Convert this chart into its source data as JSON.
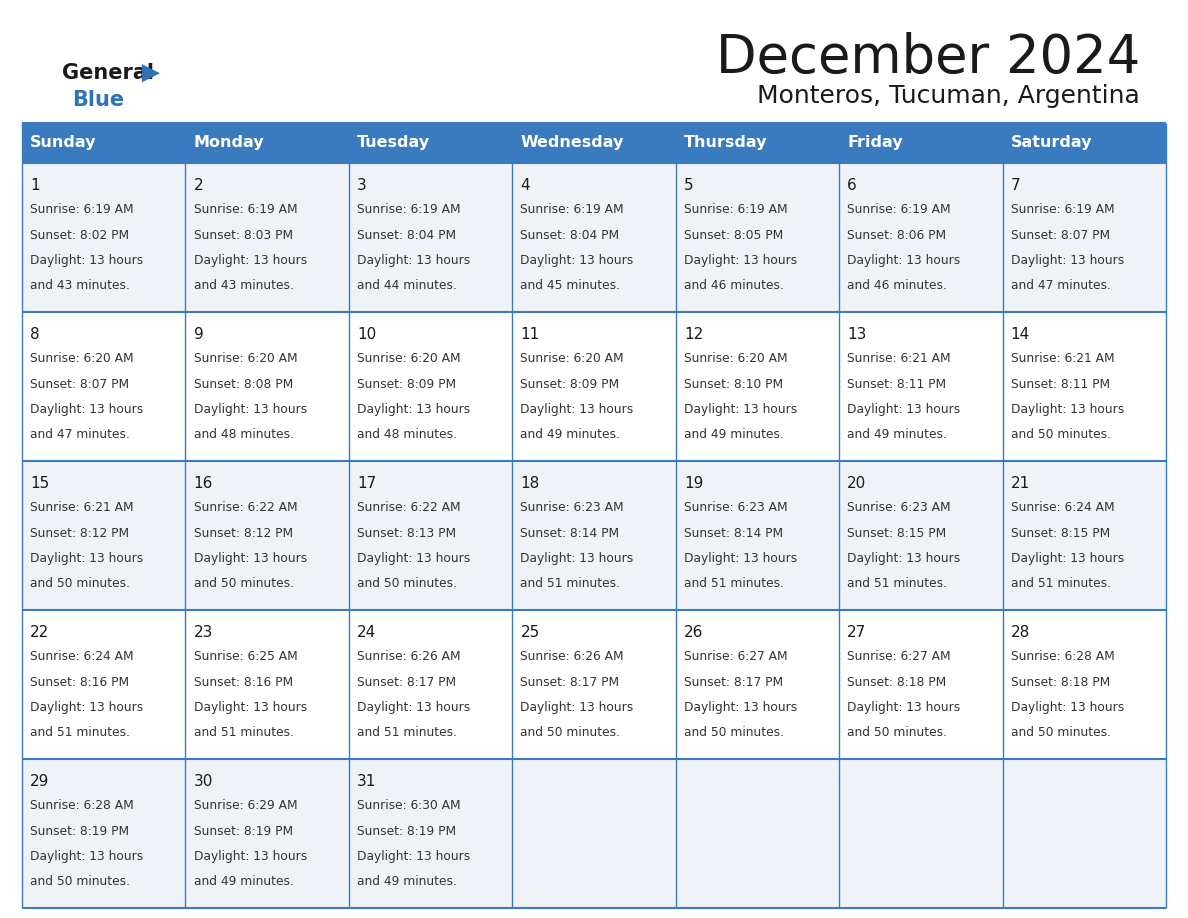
{
  "title": "December 2024",
  "subtitle": "Monteros, Tucuman, Argentina",
  "header_color": "#3a7abf",
  "header_text_color": "#ffffff",
  "weekdays": [
    "Sunday",
    "Monday",
    "Tuesday",
    "Wednesday",
    "Thursday",
    "Friday",
    "Saturday"
  ],
  "cell_bg_even": "#eff3f8",
  "cell_bg_odd": "#ffffff",
  "border_color": "#3a7abf",
  "day_text_color": "#1a1a1a",
  "info_text_color": "#333333",
  "logo_general_color": "#1a1a1a",
  "logo_blue_color": "#2e75b6",
  "days": [
    {
      "day": 1,
      "col": 0,
      "row": 0,
      "sunrise": "6:19 AM",
      "sunset": "8:02 PM",
      "daylight": "13 hours and 43 minutes."
    },
    {
      "day": 2,
      "col": 1,
      "row": 0,
      "sunrise": "6:19 AM",
      "sunset": "8:03 PM",
      "daylight": "13 hours and 43 minutes."
    },
    {
      "day": 3,
      "col": 2,
      "row": 0,
      "sunrise": "6:19 AM",
      "sunset": "8:04 PM",
      "daylight": "13 hours and 44 minutes."
    },
    {
      "day": 4,
      "col": 3,
      "row": 0,
      "sunrise": "6:19 AM",
      "sunset": "8:04 PM",
      "daylight": "13 hours and 45 minutes."
    },
    {
      "day": 5,
      "col": 4,
      "row": 0,
      "sunrise": "6:19 AM",
      "sunset": "8:05 PM",
      "daylight": "13 hours and 46 minutes."
    },
    {
      "day": 6,
      "col": 5,
      "row": 0,
      "sunrise": "6:19 AM",
      "sunset": "8:06 PM",
      "daylight": "13 hours and 46 minutes."
    },
    {
      "day": 7,
      "col": 6,
      "row": 0,
      "sunrise": "6:19 AM",
      "sunset": "8:07 PM",
      "daylight": "13 hours and 47 minutes."
    },
    {
      "day": 8,
      "col": 0,
      "row": 1,
      "sunrise": "6:20 AM",
      "sunset": "8:07 PM",
      "daylight": "13 hours and 47 minutes."
    },
    {
      "day": 9,
      "col": 1,
      "row": 1,
      "sunrise": "6:20 AM",
      "sunset": "8:08 PM",
      "daylight": "13 hours and 48 minutes."
    },
    {
      "day": 10,
      "col": 2,
      "row": 1,
      "sunrise": "6:20 AM",
      "sunset": "8:09 PM",
      "daylight": "13 hours and 48 minutes."
    },
    {
      "day": 11,
      "col": 3,
      "row": 1,
      "sunrise": "6:20 AM",
      "sunset": "8:09 PM",
      "daylight": "13 hours and 49 minutes."
    },
    {
      "day": 12,
      "col": 4,
      "row": 1,
      "sunrise": "6:20 AM",
      "sunset": "8:10 PM",
      "daylight": "13 hours and 49 minutes."
    },
    {
      "day": 13,
      "col": 5,
      "row": 1,
      "sunrise": "6:21 AM",
      "sunset": "8:11 PM",
      "daylight": "13 hours and 49 minutes."
    },
    {
      "day": 14,
      "col": 6,
      "row": 1,
      "sunrise": "6:21 AM",
      "sunset": "8:11 PM",
      "daylight": "13 hours and 50 minutes."
    },
    {
      "day": 15,
      "col": 0,
      "row": 2,
      "sunrise": "6:21 AM",
      "sunset": "8:12 PM",
      "daylight": "13 hours and 50 minutes."
    },
    {
      "day": 16,
      "col": 1,
      "row": 2,
      "sunrise": "6:22 AM",
      "sunset": "8:12 PM",
      "daylight": "13 hours and 50 minutes."
    },
    {
      "day": 17,
      "col": 2,
      "row": 2,
      "sunrise": "6:22 AM",
      "sunset": "8:13 PM",
      "daylight": "13 hours and 50 minutes."
    },
    {
      "day": 18,
      "col": 3,
      "row": 2,
      "sunrise": "6:23 AM",
      "sunset": "8:14 PM",
      "daylight": "13 hours and 51 minutes."
    },
    {
      "day": 19,
      "col": 4,
      "row": 2,
      "sunrise": "6:23 AM",
      "sunset": "8:14 PM",
      "daylight": "13 hours and 51 minutes."
    },
    {
      "day": 20,
      "col": 5,
      "row": 2,
      "sunrise": "6:23 AM",
      "sunset": "8:15 PM",
      "daylight": "13 hours and 51 minutes."
    },
    {
      "day": 21,
      "col": 6,
      "row": 2,
      "sunrise": "6:24 AM",
      "sunset": "8:15 PM",
      "daylight": "13 hours and 51 minutes."
    },
    {
      "day": 22,
      "col": 0,
      "row": 3,
      "sunrise": "6:24 AM",
      "sunset": "8:16 PM",
      "daylight": "13 hours and 51 minutes."
    },
    {
      "day": 23,
      "col": 1,
      "row": 3,
      "sunrise": "6:25 AM",
      "sunset": "8:16 PM",
      "daylight": "13 hours and 51 minutes."
    },
    {
      "day": 24,
      "col": 2,
      "row": 3,
      "sunrise": "6:26 AM",
      "sunset": "8:17 PM",
      "daylight": "13 hours and 51 minutes."
    },
    {
      "day": 25,
      "col": 3,
      "row": 3,
      "sunrise": "6:26 AM",
      "sunset": "8:17 PM",
      "daylight": "13 hours and 50 minutes."
    },
    {
      "day": 26,
      "col": 4,
      "row": 3,
      "sunrise": "6:27 AM",
      "sunset": "8:17 PM",
      "daylight": "13 hours and 50 minutes."
    },
    {
      "day": 27,
      "col": 5,
      "row": 3,
      "sunrise": "6:27 AM",
      "sunset": "8:18 PM",
      "daylight": "13 hours and 50 minutes."
    },
    {
      "day": 28,
      "col": 6,
      "row": 3,
      "sunrise": "6:28 AM",
      "sunset": "8:18 PM",
      "daylight": "13 hours and 50 minutes."
    },
    {
      "day": 29,
      "col": 0,
      "row": 4,
      "sunrise": "6:28 AM",
      "sunset": "8:19 PM",
      "daylight": "13 hours and 50 minutes."
    },
    {
      "day": 30,
      "col": 1,
      "row": 4,
      "sunrise": "6:29 AM",
      "sunset": "8:19 PM",
      "daylight": "13 hours and 49 minutes."
    },
    {
      "day": 31,
      "col": 2,
      "row": 4,
      "sunrise": "6:30 AM",
      "sunset": "8:19 PM",
      "daylight": "13 hours and 49 minutes."
    }
  ]
}
